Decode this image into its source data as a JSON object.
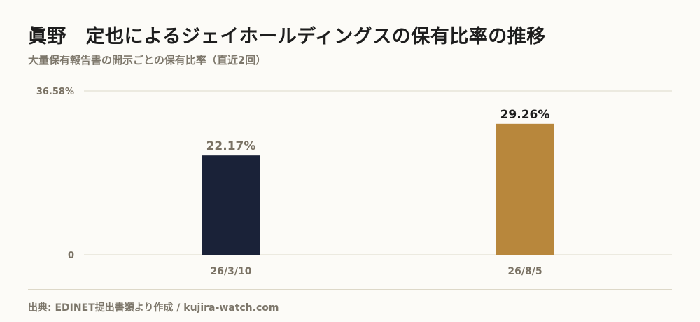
{
  "title": "眞野　定也によるジェイホールディングスの保有比率の推移",
  "subtitle": "大量保有報告書の開示ごとの保有比率（直近2回）",
  "source": "出典: EDINET提出書類より作成 / kujira-watch.com",
  "colors": {
    "background": "#fcfbf7",
    "bar_first": "#1a2238",
    "bar_last": "#b8873c",
    "label_first": "#7a7264",
    "label_last": "#1d1d1d",
    "grid": "#ddd8c8",
    "axis_text": "#7a7264"
  },
  "chart_data": {
    "type": "bar",
    "title": "眞野　定也によるジェイホールディングスの保有比率の推移",
    "subtitle": "大量保有報告書の開示ごとの保有比率（直近2回）",
    "categories": [
      "26/3/10",
      "26/8/5"
    ],
    "values": [
      22.17,
      29.26
    ],
    "value_labels": [
      "22.17%",
      "29.26%"
    ],
    "ylim": [
      0,
      36.58
    ],
    "y_tick_labels": [
      "0",
      "36.58%"
    ],
    "grid": true,
    "legend": "none"
  }
}
